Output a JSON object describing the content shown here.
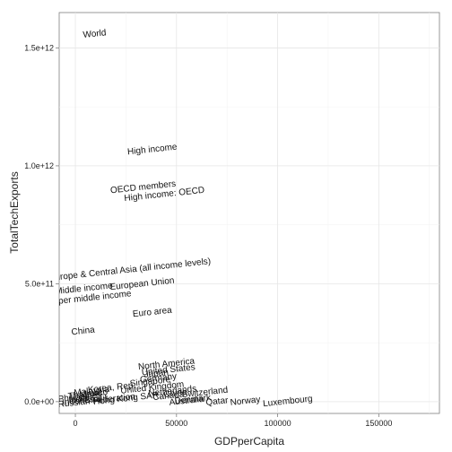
{
  "chart_data": {
    "type": "scatter",
    "title": "",
    "xlabel": "GDPperCapita",
    "ylabel": "TotalTechExports",
    "xlim": [
      -8000,
      180000
    ],
    "ylim": [
      -50000000000,
      1650000000000
    ],
    "grid": true,
    "x_ticks": [
      {
        "value": 0,
        "label": "0"
      },
      {
        "value": 50000,
        "label": "50000"
      },
      {
        "value": 100000,
        "label": "100000"
      },
      {
        "value": 150000,
        "label": "150000"
      }
    ],
    "y_ticks": [
      {
        "value": 0,
        "label": "0.0e+00"
      },
      {
        "value": 500000000000,
        "label": "5.0e+11"
      },
      {
        "value": 1000000000000,
        "label": "1.0e+12"
      },
      {
        "value": 1500000000000,
        "label": "1.5e+12"
      }
    ],
    "points": [
      {
        "label": "World",
        "x": 9500,
        "y": 1560000000000
      },
      {
        "label": "High income",
        "x": 38000,
        "y": 1070000000000
      },
      {
        "label": "OECD members",
        "x": 33500,
        "y": 910000000000
      },
      {
        "label": "High income: OECD",
        "x": 44000,
        "y": 880000000000
      },
      {
        "label": "Europe & Central Asia (all income levels)",
        "x": 27000,
        "y": 560000000000
      },
      {
        "label": "Middle income",
        "x": 4200,
        "y": 480000000000
      },
      {
        "label": "European Union",
        "x": 33000,
        "y": 500000000000
      },
      {
        "label": "Upper middle income",
        "x": 6800,
        "y": 440000000000
      },
      {
        "label": "Euro area",
        "x": 38000,
        "y": 380000000000
      },
      {
        "label": "China",
        "x": 3800,
        "y": 300000000000
      },
      {
        "label": "North America",
        "x": 45000,
        "y": 160000000000
      },
      {
        "label": "United States",
        "x": 46000,
        "y": 135000000000
      },
      {
        "label": "Korea, Rep.",
        "x": 18000,
        "y": 60000000000
      },
      {
        "label": "Japan",
        "x": 40000,
        "y": 120000000000
      },
      {
        "label": "Germany",
        "x": 41000,
        "y": 100000000000
      },
      {
        "label": "Singapore",
        "x": 37000,
        "y": 85000000000
      },
      {
        "label": "Netherlands",
        "x": 48000,
        "y": 45000000000
      },
      {
        "label": "Switzerland",
        "x": 64000,
        "y": 40000000000
      },
      {
        "label": "Malaysia",
        "x": 8000,
        "y": 45000000000
      },
      {
        "label": "Mexico",
        "x": 9000,
        "y": 35000000000
      },
      {
        "label": "Hong Kong SAR, China",
        "x": 32000,
        "y": 20000000000
      },
      {
        "label": "Thailand",
        "x": 4800,
        "y": 30000000000
      },
      {
        "label": "Philippines",
        "x": 2100,
        "y": 20000000000
      },
      {
        "label": "Brazil",
        "x": 10000,
        "y": 10000000000
      },
      {
        "label": "Russian Federation",
        "x": 10500,
        "y": 5000000000
      },
      {
        "label": "India",
        "x": 1400,
        "y": 10000000000
      },
      {
        "label": "Indonesia",
        "x": 3000,
        "y": 5000000000
      },
      {
        "label": "United Kingdom",
        "x": 38000,
        "y": 60000000000
      },
      {
        "label": "Canada",
        "x": 46000,
        "y": 25000000000
      },
      {
        "label": "Australia",
        "x": 55000,
        "y": 4000000000
      },
      {
        "label": "Qatar",
        "x": 70000,
        "y": 1000000000
      },
      {
        "label": "Norway",
        "x": 84000,
        "y": 3000000000
      },
      {
        "label": "Denmark",
        "x": 58000,
        "y": 10000000000
      },
      {
        "label": "Luxembourg",
        "x": 105000,
        "y": 2000000000
      }
    ]
  }
}
